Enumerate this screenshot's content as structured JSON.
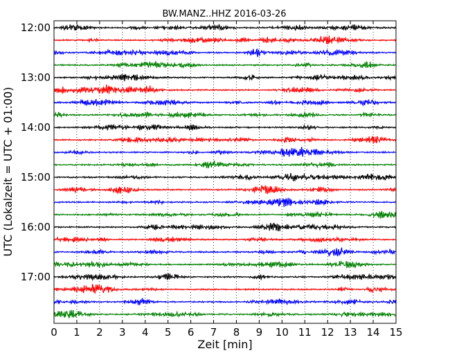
{
  "chart_data": {
    "type": "line",
    "title": "BW.MANZ..HHZ 2016-03-26",
    "xlabel": "Zeit  [min]",
    "ylabel": "UTC (Lokalzeit = UTC + 01:00)",
    "xlim": [
      0,
      15
    ],
    "x_ticks": [
      "0",
      "1",
      "2",
      "3",
      "4",
      "5",
      "6",
      "7",
      "8",
      "9",
      "10",
      "11",
      "12",
      "13",
      "14",
      "15"
    ],
    "y_ticks": [
      "12:00",
      "13:00",
      "14:00",
      "15:00",
      "16:00",
      "17:00"
    ],
    "grid": "vertical dotted at each minute",
    "trace_colors": [
      "#000000",
      "#ff0000",
      "#0000ff",
      "#008000"
    ],
    "traces": [
      {
        "start": "12:00",
        "color": "#000000"
      },
      {
        "start": "12:15",
        "color": "#ff0000"
      },
      {
        "start": "12:30",
        "color": "#0000ff"
      },
      {
        "start": "12:45",
        "color": "#008000"
      },
      {
        "start": "13:00",
        "color": "#000000"
      },
      {
        "start": "13:15",
        "color": "#ff0000"
      },
      {
        "start": "13:30",
        "color": "#0000ff"
      },
      {
        "start": "13:45",
        "color": "#008000"
      },
      {
        "start": "14:00",
        "color": "#000000"
      },
      {
        "start": "14:15",
        "color": "#ff0000"
      },
      {
        "start": "14:30",
        "color": "#0000ff"
      },
      {
        "start": "14:45",
        "color": "#008000"
      },
      {
        "start": "15:00",
        "color": "#000000"
      },
      {
        "start": "15:15",
        "color": "#ff0000"
      },
      {
        "start": "15:30",
        "color": "#0000ff"
      },
      {
        "start": "15:45",
        "color": "#008000"
      },
      {
        "start": "16:00",
        "color": "#000000"
      },
      {
        "start": "16:15",
        "color": "#ff0000"
      },
      {
        "start": "16:30",
        "color": "#0000ff"
      },
      {
        "start": "16:45",
        "color": "#008000"
      },
      {
        "start": "17:00",
        "color": "#000000"
      },
      {
        "start": "17:15",
        "color": "#ff0000"
      },
      {
        "start": "17:30",
        "color": "#0000ff"
      },
      {
        "start": "17:45",
        "color": "#008000"
      }
    ]
  }
}
